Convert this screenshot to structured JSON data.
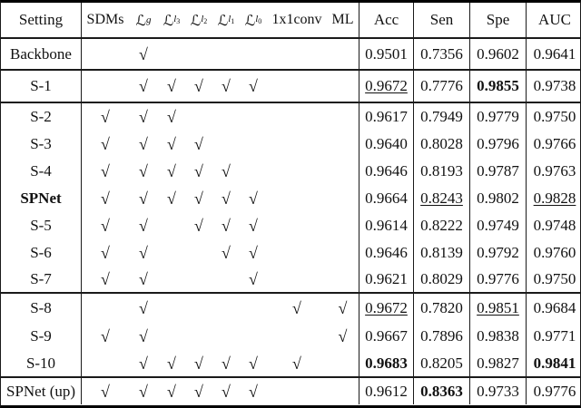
{
  "table": {
    "check_glyph": "√",
    "header": {
      "setting": "Setting",
      "components": [
        {
          "text": "SDMs"
        },
        {
          "base": "ℒ",
          "sub": "g"
        },
        {
          "base": "ℒ",
          "sub": "l",
          "subsub": "3"
        },
        {
          "base": "ℒ",
          "sub": "l",
          "subsub": "2"
        },
        {
          "base": "ℒ",
          "sub": "l",
          "subsub": "1"
        },
        {
          "base": "ℒ",
          "sub": "l",
          "subsub": "0"
        },
        {
          "text": "1x1conv"
        },
        {
          "text": "ML"
        }
      ],
      "metrics": [
        "Acc",
        "Sen",
        "Spe",
        "AUC"
      ]
    },
    "rows": [
      {
        "setting": "Backbone",
        "bold": false,
        "section": 1,
        "checks": [
          0,
          1,
          0,
          0,
          0,
          0,
          0,
          0
        ],
        "metrics": [
          {
            "v": "0.9501",
            "s": ""
          },
          {
            "v": "0.7356",
            "s": ""
          },
          {
            "v": "0.9602",
            "s": ""
          },
          {
            "v": "0.9641",
            "s": ""
          }
        ]
      },
      {
        "setting": "S-1",
        "bold": false,
        "section": 2,
        "checks": [
          0,
          1,
          1,
          1,
          1,
          1,
          0,
          0
        ],
        "metrics": [
          {
            "v": "0.9672",
            "s": "u"
          },
          {
            "v": "0.7776",
            "s": ""
          },
          {
            "v": "0.9855",
            "s": "b"
          },
          {
            "v": "0.9738",
            "s": ""
          }
        ]
      },
      {
        "setting": "S-2",
        "bold": false,
        "section": 3,
        "checks": [
          1,
          1,
          1,
          0,
          0,
          0,
          0,
          0
        ],
        "metrics": [
          {
            "v": "0.9617",
            "s": ""
          },
          {
            "v": "0.7949",
            "s": ""
          },
          {
            "v": "0.9779",
            "s": ""
          },
          {
            "v": "0.9750",
            "s": ""
          }
        ]
      },
      {
        "setting": "S-3",
        "bold": false,
        "section": 3,
        "checks": [
          1,
          1,
          1,
          1,
          0,
          0,
          0,
          0
        ],
        "metrics": [
          {
            "v": "0.9640",
            "s": ""
          },
          {
            "v": "0.8028",
            "s": ""
          },
          {
            "v": "0.9796",
            "s": ""
          },
          {
            "v": "0.9766",
            "s": ""
          }
        ]
      },
      {
        "setting": "S-4",
        "bold": false,
        "section": 3,
        "checks": [
          1,
          1,
          1,
          1,
          1,
          0,
          0,
          0
        ],
        "metrics": [
          {
            "v": "0.9646",
            "s": ""
          },
          {
            "v": "0.8193",
            "s": ""
          },
          {
            "v": "0.9787",
            "s": ""
          },
          {
            "v": "0.9763",
            "s": ""
          }
        ]
      },
      {
        "setting": "SPNet",
        "bold": true,
        "section": 3,
        "checks": [
          1,
          1,
          1,
          1,
          1,
          1,
          0,
          0
        ],
        "metrics": [
          {
            "v": "0.9664",
            "s": ""
          },
          {
            "v": "0.8243",
            "s": "u"
          },
          {
            "v": "0.9802",
            "s": ""
          },
          {
            "v": "0.9828",
            "s": "u"
          }
        ]
      },
      {
        "setting": "S-5",
        "bold": false,
        "section": 3,
        "checks": [
          1,
          1,
          0,
          1,
          1,
          1,
          0,
          0
        ],
        "metrics": [
          {
            "v": "0.9614",
            "s": ""
          },
          {
            "v": "0.8222",
            "s": ""
          },
          {
            "v": "0.9749",
            "s": ""
          },
          {
            "v": "0.9748",
            "s": ""
          }
        ]
      },
      {
        "setting": "S-6",
        "bold": false,
        "section": 3,
        "checks": [
          1,
          1,
          0,
          0,
          1,
          1,
          0,
          0
        ],
        "metrics": [
          {
            "v": "0.9646",
            "s": ""
          },
          {
            "v": "0.8139",
            "s": ""
          },
          {
            "v": "0.9792",
            "s": ""
          },
          {
            "v": "0.9760",
            "s": ""
          }
        ]
      },
      {
        "setting": "S-7",
        "bold": false,
        "section": 3,
        "checks": [
          1,
          1,
          0,
          0,
          0,
          1,
          0,
          0
        ],
        "metrics": [
          {
            "v": "0.9621",
            "s": ""
          },
          {
            "v": "0.8029",
            "s": ""
          },
          {
            "v": "0.9776",
            "s": ""
          },
          {
            "v": "0.9750",
            "s": ""
          }
        ]
      },
      {
        "setting": "S-8",
        "bold": false,
        "section": 4,
        "checks": [
          0,
          1,
          0,
          0,
          0,
          0,
          1,
          1
        ],
        "metrics": [
          {
            "v": "0.9672",
            "s": "u"
          },
          {
            "v": "0.7820",
            "s": ""
          },
          {
            "v": "0.9851",
            "s": "u"
          },
          {
            "v": "0.9684",
            "s": ""
          }
        ]
      },
      {
        "setting": "S-9",
        "bold": false,
        "section": 4,
        "checks": [
          1,
          1,
          0,
          0,
          0,
          0,
          0,
          1
        ],
        "metrics": [
          {
            "v": "0.9667",
            "s": ""
          },
          {
            "v": "0.7896",
            "s": ""
          },
          {
            "v": "0.9838",
            "s": ""
          },
          {
            "v": "0.9771",
            "s": ""
          }
        ]
      },
      {
        "setting": "S-10",
        "bold": false,
        "section": 4,
        "checks": [
          0,
          1,
          1,
          1,
          1,
          1,
          1,
          0
        ],
        "metrics": [
          {
            "v": "0.9683",
            "s": "b"
          },
          {
            "v": "0.8205",
            "s": ""
          },
          {
            "v": "0.9827",
            "s": ""
          },
          {
            "v": "0.9841",
            "s": "b"
          }
        ]
      },
      {
        "setting": "SPNet (up)",
        "bold": false,
        "section": 5,
        "checks": [
          1,
          1,
          1,
          1,
          1,
          1,
          0,
          0
        ],
        "metrics": [
          {
            "v": "0.9612",
            "s": ""
          },
          {
            "v": "0.8363",
            "s": "b"
          },
          {
            "v": "0.9733",
            "s": ""
          },
          {
            "v": "0.9776",
            "s": ""
          }
        ]
      }
    ]
  }
}
